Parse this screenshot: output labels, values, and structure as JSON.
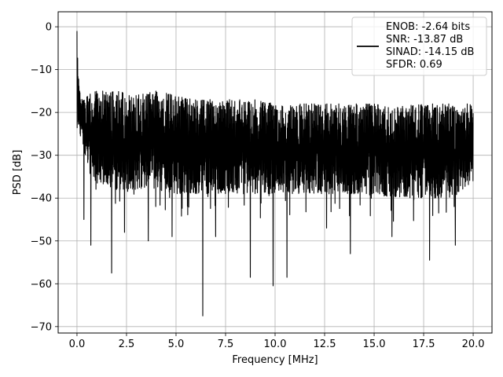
{
  "chart_data": {
    "type": "line",
    "title": "",
    "xlabel": "Frequency [MHz]",
    "ylabel": "PSD [dB]",
    "xlim": [
      -0.95,
      20.95
    ],
    "ylim": [
      -71.5,
      3.5
    ],
    "xticks": [
      0.0,
      2.5,
      5.0,
      7.5,
      10.0,
      12.5,
      15.0,
      17.5,
      20.0
    ],
    "xtick_labels": [
      "0.0",
      "2.5",
      "5.0",
      "7.5",
      "10.0",
      "12.5",
      "15.0",
      "17.5",
      "20.0"
    ],
    "yticks": [
      0,
      -10,
      -20,
      -30,
      -40,
      -50,
      -60,
      -70
    ],
    "ytick_labels": [
      "0",
      "−10",
      "−20",
      "−30",
      "−40",
      "−50",
      "−60",
      "−70"
    ],
    "grid": true,
    "legend_position": "top-right",
    "series": [
      {
        "color": "#000000",
        "description": "dense noisy PSD trace; envelope approximated below",
        "upper_envelope": {
          "x": [
            0.0,
            0.05,
            0.1,
            0.2,
            0.3,
            0.5,
            1.0,
            2.0,
            3.0,
            4.0,
            5.0,
            6.0,
            7.0,
            8.0,
            9.0,
            10.0,
            11.0,
            12.0,
            13.0,
            14.0,
            15.0,
            16.0,
            17.0,
            18.0,
            19.0,
            20.0
          ],
          "y": [
            -1,
            -5,
            -12,
            -18,
            -15,
            -16,
            -15,
            -15,
            -16,
            -15,
            -16,
            -17,
            -17,
            -17,
            -17,
            -18,
            -18,
            -18,
            -18,
            -18,
            -18,
            -19,
            -18,
            -18,
            -18,
            -18
          ]
        },
        "lower_envelope": {
          "x": [
            0.0,
            0.1,
            0.3,
            0.5,
            1.0,
            2.0,
            3.0,
            4.0,
            5.0,
            6.0,
            7.0,
            8.0,
            9.0,
            10.0,
            11.0,
            12.0,
            13.0,
            14.0,
            15.0,
            16.0,
            17.0,
            18.0,
            19.0,
            20.0
          ],
          "y": [
            -20,
            -24,
            -28,
            -33,
            -37,
            -38,
            -38,
            -38,
            -39,
            -39,
            -39,
            -39,
            -39,
            -39,
            -39,
            -39,
            -39,
            -39,
            -39,
            -40,
            -40,
            -40,
            -40,
            -36
          ]
        },
        "deep_notches": {
          "x": [
            0.35,
            0.7,
            1.75,
            2.4,
            3.6,
            4.8,
            6.35,
            7.0,
            8.75,
            9.9,
            10.6,
            12.6,
            13.8,
            15.9,
            17.8,
            19.1
          ],
          "y": [
            -45,
            -51,
            -57.5,
            -48,
            -50,
            -49,
            -67.5,
            -49,
            -58.5,
            -60.5,
            -58.5,
            -47,
            -53,
            -49,
            -54.5,
            -51
          ]
        }
      }
    ],
    "legend": {
      "line_color": "#000000",
      "lines": [
        "ENOB: -2.64 bits",
        "SNR: -13.87 dB",
        "SINAD: -14.15 dB",
        "SFDR: 0.69"
      ]
    }
  }
}
